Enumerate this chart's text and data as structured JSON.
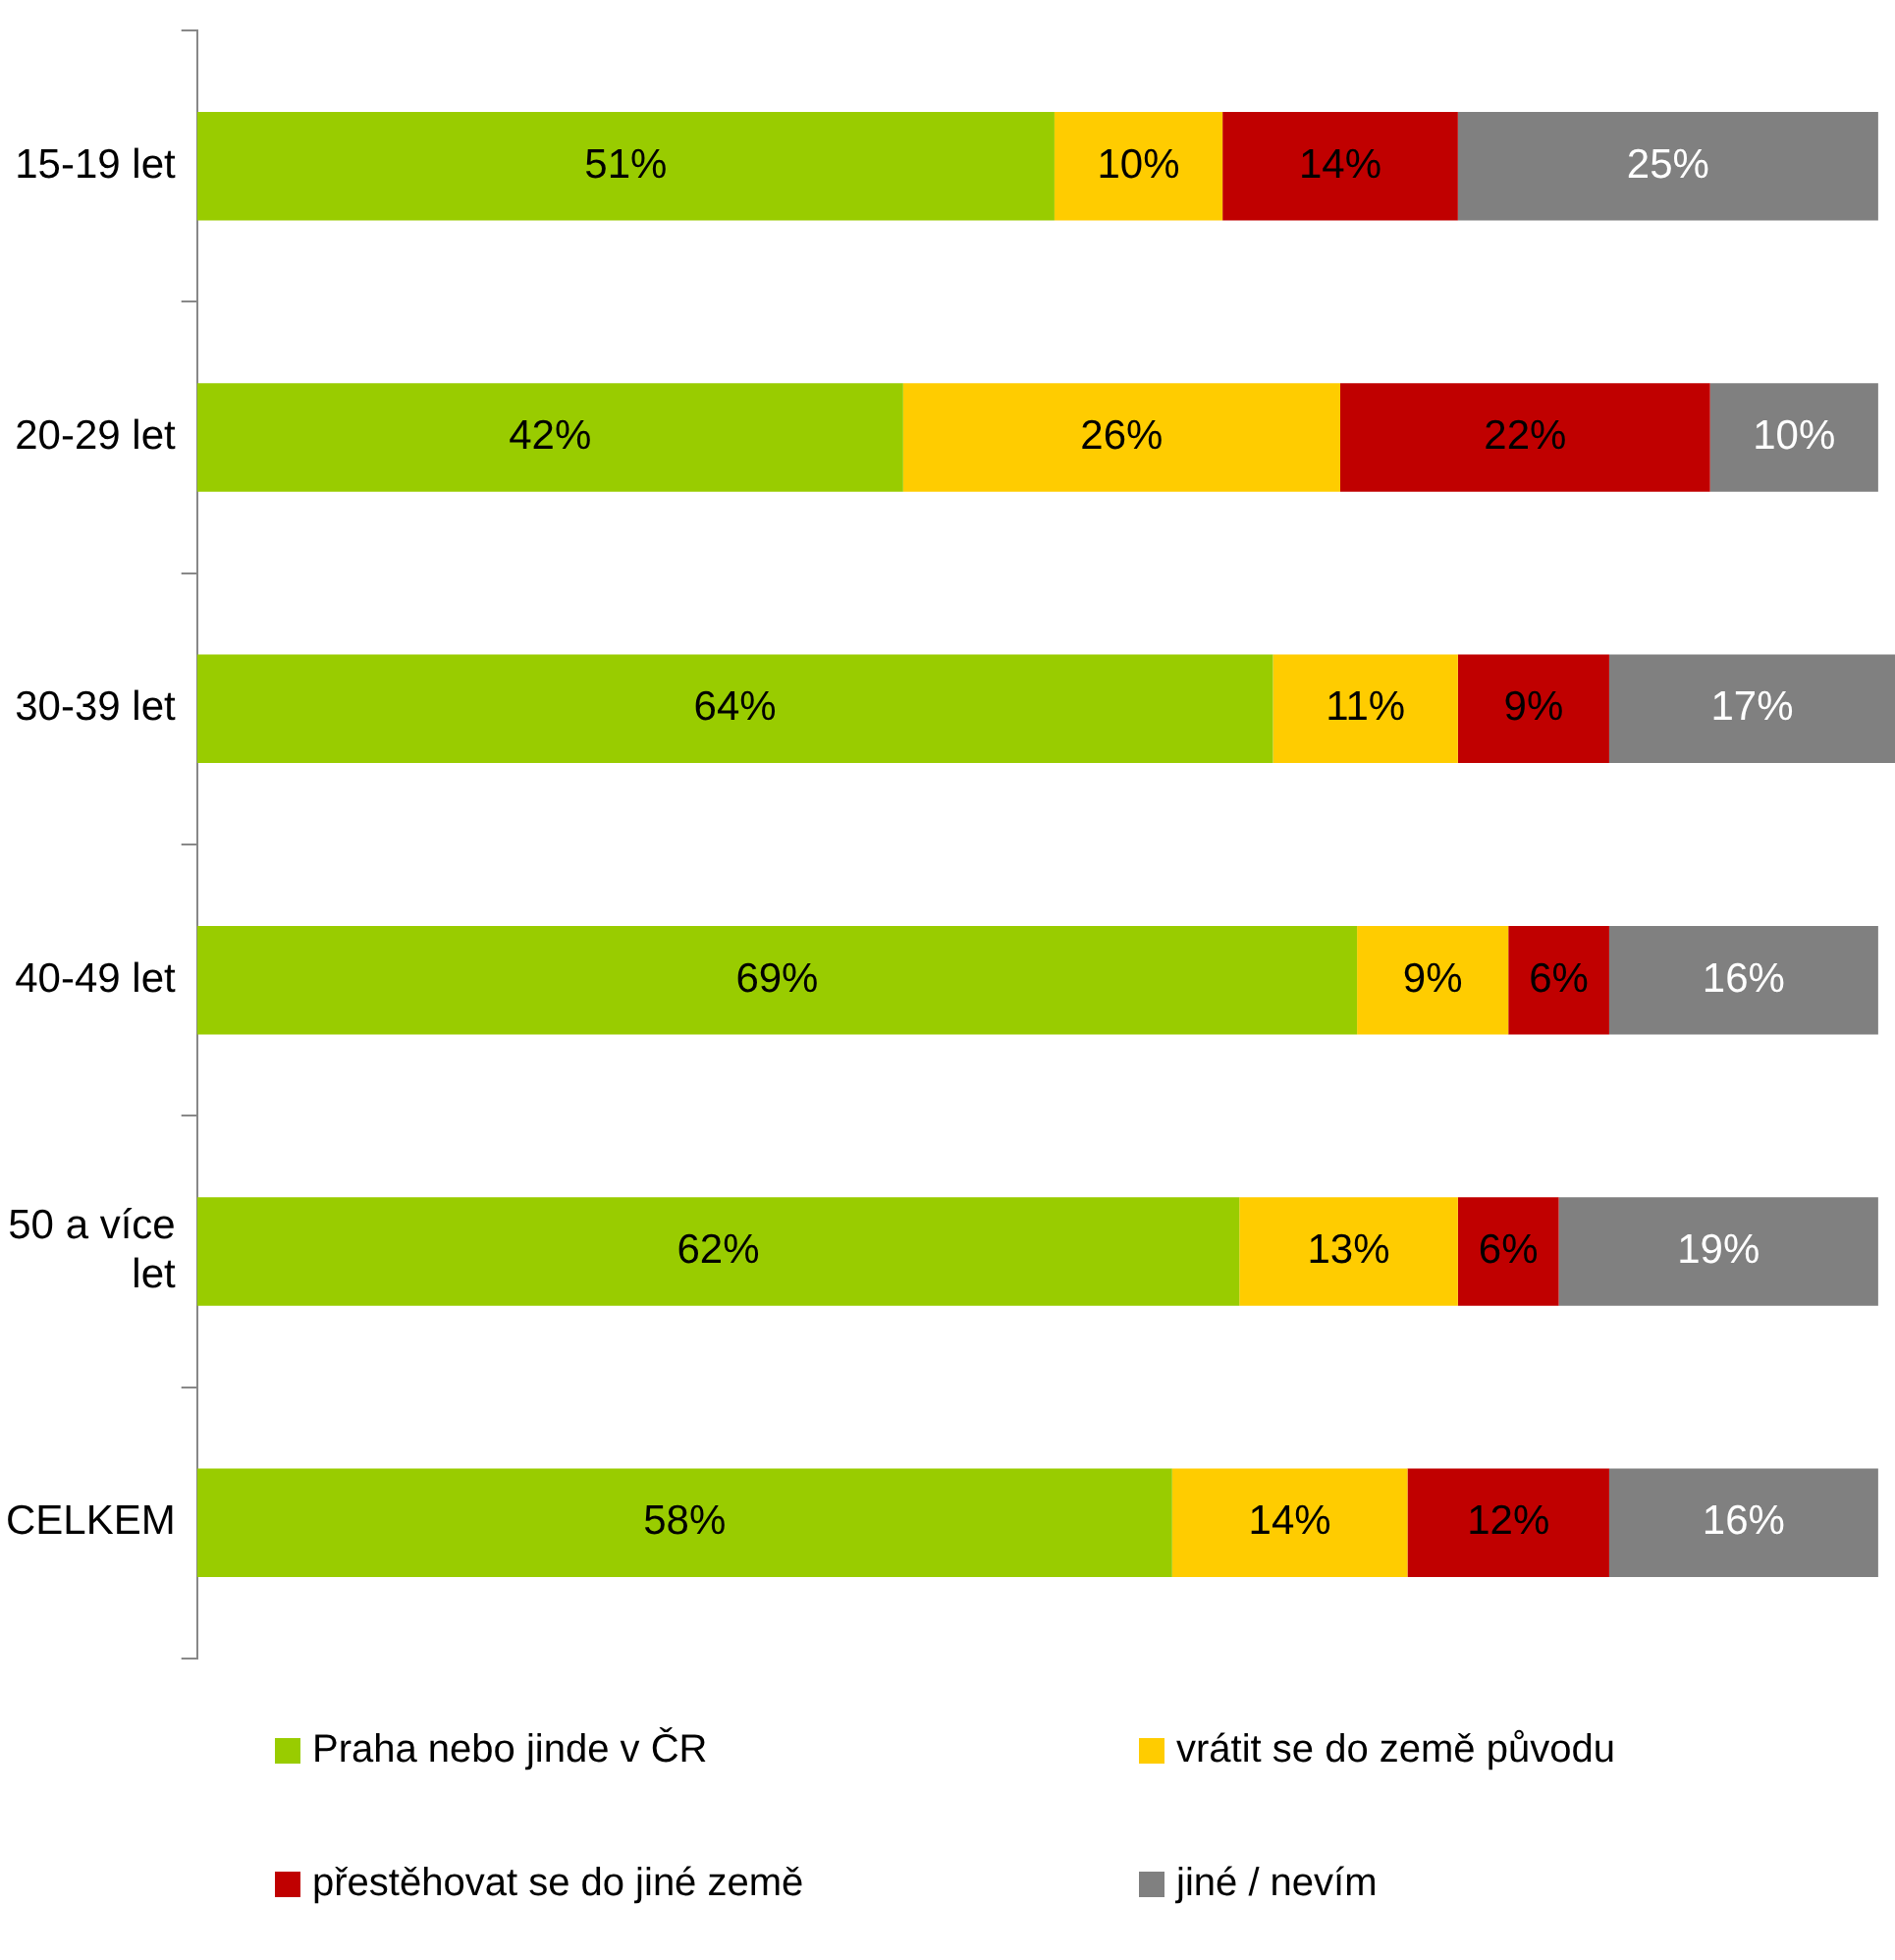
{
  "chart_data": {
    "type": "bar",
    "orientation": "horizontal",
    "stacked": true,
    "tick_labels": "y",
    "grid": false,
    "legend": "bottom",
    "categories": [
      "15-19 let",
      "20-29 let",
      "30-39 let",
      "40-49 let",
      "50 a více let",
      "CELKEM"
    ],
    "series": [
      {
        "name": "Praha nebo jinde v ČR",
        "color": "#99cc00",
        "values": [
          51,
          42,
          64,
          69,
          62,
          58
        ],
        "value_labels": [
          "51%",
          "42%",
          "64%",
          "69%",
          "62%",
          "58%"
        ]
      },
      {
        "name": "vrátit se do země původu",
        "color": "#ffcc00",
        "values": [
          10,
          26,
          11,
          9,
          13,
          14
        ],
        "value_labels": [
          "10%",
          "26%",
          "11%",
          "9%",
          "13%",
          "14%"
        ]
      },
      {
        "name": "přestěhovat se do jiné země",
        "color": "#c00000",
        "values": [
          14,
          22,
          9,
          6,
          6,
          12
        ],
        "value_labels": [
          "14%",
          "22%",
          "9%",
          "6%",
          "6%",
          "12%"
        ]
      },
      {
        "name": "jiné / nevím",
        "color": "#808080",
        "values": [
          25,
          10,
          17,
          16,
          19,
          16
        ],
        "value_labels": [
          "25%",
          "10%",
          "17%",
          "16%",
          "19%",
          "16%"
        ]
      }
    ]
  }
}
